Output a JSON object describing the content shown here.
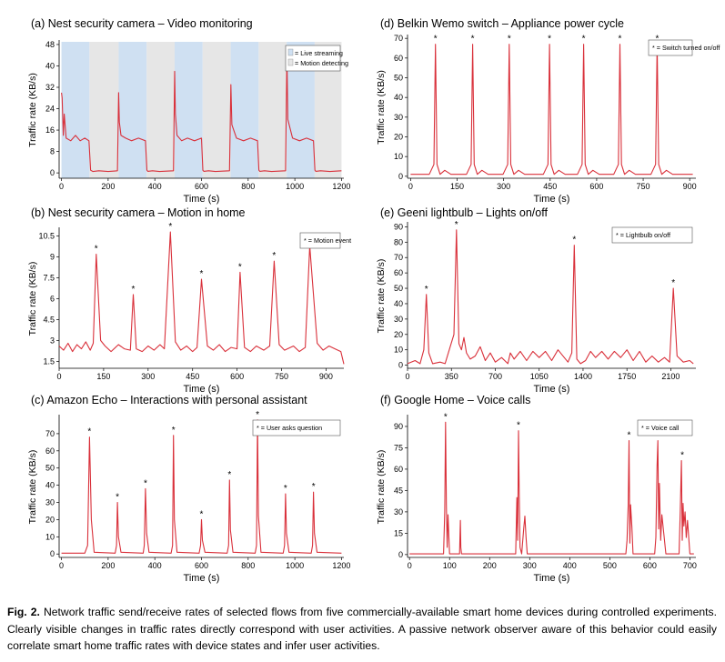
{
  "figure": {
    "caption_label": "Fig. 2.",
    "caption_text": "Network traffic send/receive rates of selected flows from five commercially-available smart home devices during controlled experiments. Clearly visible changes in traffic rates directly correspond with user activities. A passive network observer aware of this behavior could easily correlate smart home traffic rates with device states and infer user activities."
  },
  "colors": {
    "line": "#d9303a",
    "band_blue": "#cfe0f2",
    "band_gray": "#e6e6e6",
    "axis": "#000000"
  },
  "chart_data": [
    {
      "id": "a",
      "type": "line",
      "title": "(a) Nest security camera – Video monitoring",
      "xlabel": "Time (s)",
      "ylabel": "Traffic rate (KB/s)",
      "xlim": [
        -10,
        1210
      ],
      "ylim": [
        -2,
        49
      ],
      "xticks": [
        0,
        200,
        400,
        600,
        800,
        1000,
        1200
      ],
      "yticks": [
        0,
        8,
        16,
        24,
        32,
        40,
        48
      ],
      "legend": {
        "position": "top-right",
        "entries": [
          "= Live streaming",
          "= Motion detecting"
        ]
      },
      "bands": [
        {
          "state": "live_streaming",
          "x0": 0,
          "x1": 120
        },
        {
          "state": "motion_detecting",
          "x0": 120,
          "x1": 245
        },
        {
          "state": "live_streaming",
          "x0": 245,
          "x1": 365
        },
        {
          "state": "motion_detecting",
          "x0": 365,
          "x1": 485
        },
        {
          "state": "live_streaming",
          "x0": 485,
          "x1": 605
        },
        {
          "state": "motion_detecting",
          "x0": 605,
          "x1": 725
        },
        {
          "state": "live_streaming",
          "x0": 725,
          "x1": 845
        },
        {
          "state": "motion_detecting",
          "x0": 845,
          "x1": 965
        },
        {
          "state": "live_streaming",
          "x0": 965,
          "x1": 1085
        },
        {
          "state": "motion_detecting",
          "x0": 1085,
          "x1": 1200
        }
      ],
      "series": [
        {
          "name": "traffic",
          "x": [
            0,
            3,
            8,
            12,
            20,
            40,
            60,
            80,
            100,
            118,
            125,
            135,
            160,
            200,
            240,
            245,
            248,
            255,
            275,
            300,
            330,
            360,
            366,
            370,
            390,
            420,
            480,
            485,
            488,
            495,
            515,
            540,
            570,
            600,
            606,
            610,
            630,
            660,
            720,
            726,
            730,
            750,
            780,
            810,
            840,
            846,
            850,
            870,
            900,
            960,
            966,
            970,
            990,
            1020,
            1050,
            1080,
            1086,
            1090,
            1110,
            1150,
            1200
          ],
          "y": [
            30,
            28,
            14,
            22,
            13,
            12,
            14,
            12,
            13,
            12,
            1,
            0.5,
            0.8,
            0.5,
            0.8,
            30,
            19,
            14,
            13,
            12,
            13,
            12,
            1,
            0.6,
            0.8,
            0.5,
            0.8,
            38,
            22,
            14,
            12,
            13,
            12,
            13,
            1,
            0.6,
            0.8,
            0.5,
            0.8,
            33,
            18,
            13,
            12,
            13,
            12,
            1,
            0.6,
            0.8,
            0.5,
            0.8,
            44,
            20,
            13,
            12,
            13,
            12,
            1,
            0.6,
            0.8,
            0.5,
            0.8
          ]
        }
      ]
    },
    {
      "id": "b",
      "type": "line",
      "title": "(b) Nest security camera – Motion in home",
      "xlabel": "Time (s)",
      "ylabel": "Traffic rate (KB/s)",
      "xlim": [
        0,
        960
      ],
      "ylim": [
        1.0,
        11.0
      ],
      "xticks": [
        0,
        150,
        300,
        450,
        600,
        750,
        900
      ],
      "yticks": [
        1.5,
        3,
        4.5,
        6,
        7.5,
        9,
        10.5
      ],
      "legend": {
        "position": "top-right",
        "entries": [
          "* = Motion event"
        ]
      },
      "marker_label": "*",
      "events": [
        {
          "x": 125,
          "y": 9.2
        },
        {
          "x": 250,
          "y": 6.3
        },
        {
          "x": 375,
          "y": 10.8
        },
        {
          "x": 480,
          "y": 7.4
        },
        {
          "x": 610,
          "y": 7.9
        },
        {
          "x": 725,
          "y": 8.7
        },
        {
          "x": 845,
          "y": 9.8
        }
      ],
      "series": [
        {
          "name": "traffic",
          "x": [
            0,
            15,
            30,
            45,
            60,
            75,
            90,
            105,
            115,
            125,
            140,
            155,
            175,
            200,
            220,
            240,
            250,
            260,
            280,
            300,
            320,
            340,
            355,
            375,
            392,
            410,
            430,
            450,
            465,
            480,
            500,
            520,
            540,
            560,
            580,
            600,
            610,
            625,
            645,
            665,
            690,
            710,
            725,
            742,
            760,
            790,
            810,
            830,
            845,
            870,
            890,
            910,
            930,
            950,
            960
          ],
          "y": [
            2.6,
            2.3,
            2.8,
            2.2,
            2.7,
            2.4,
            2.9,
            2.3,
            2.8,
            9.2,
            3.0,
            2.6,
            2.2,
            2.7,
            2.4,
            2.3,
            6.3,
            2.4,
            2.2,
            2.6,
            2.3,
            2.7,
            2.4,
            10.8,
            2.9,
            2.3,
            2.6,
            2.2,
            2.5,
            7.4,
            2.6,
            2.3,
            2.7,
            2.2,
            2.5,
            2.4,
            7.9,
            2.5,
            2.2,
            2.6,
            2.3,
            2.6,
            8.7,
            2.7,
            2.3,
            2.6,
            2.2,
            2.5,
            9.8,
            2.8,
            2.3,
            2.6,
            2.4,
            2.2,
            1.3
          ]
        }
      ]
    },
    {
      "id": "c",
      "type": "line",
      "title": "(c) Amazon Echo – Interactions with personal assistant",
      "xlabel": "Time (s)",
      "ylabel": "Traffic rate (KB/s)",
      "xlim": [
        -10,
        1210
      ],
      "ylim": [
        -2,
        80
      ],
      "xticks": [
        0,
        200,
        400,
        600,
        800,
        1000,
        1200
      ],
      "yticks": [
        0,
        10,
        20,
        30,
        40,
        50,
        60,
        70
      ],
      "legend": {
        "position": "top-right",
        "entries": [
          "* = User asks question"
        ]
      },
      "marker_label": "*",
      "events": [
        {
          "x": 120,
          "y": 68
        },
        {
          "x": 240,
          "y": 30
        },
        {
          "x": 360,
          "y": 38
        },
        {
          "x": 480,
          "y": 69
        },
        {
          "x": 600,
          "y": 20
        },
        {
          "x": 720,
          "y": 43
        },
        {
          "x": 840,
          "y": 78
        },
        {
          "x": 960,
          "y": 35
        },
        {
          "x": 1080,
          "y": 36
        }
      ],
      "series": [
        {
          "name": "traffic",
          "x": [
            0,
            100,
            112,
            120,
            128,
            140,
            230,
            236,
            240,
            244,
            255,
            350,
            355,
            360,
            365,
            375,
            470,
            476,
            480,
            484,
            495,
            590,
            596,
            600,
            604,
            615,
            710,
            716,
            720,
            724,
            735,
            830,
            836,
            840,
            844,
            855,
            950,
            956,
            960,
            964,
            975,
            1070,
            1076,
            1080,
            1084,
            1095,
            1200
          ],
          "y": [
            0.5,
            0.5,
            5,
            68,
            20,
            1,
            0.5,
            5,
            30,
            10,
            1,
            0.5,
            5,
            38,
            12,
            1,
            0.5,
            5,
            69,
            20,
            1,
            0.5,
            5,
            20,
            8,
            1,
            0.5,
            5,
            43,
            14,
            1,
            0.5,
            5,
            78,
            22,
            1,
            0.5,
            5,
            35,
            12,
            1,
            0.5,
            5,
            36,
            12,
            1,
            0.5
          ]
        }
      ]
    },
    {
      "id": "d",
      "type": "line",
      "title": "(d) Belkin Wemo switch – Appliance power cycle",
      "xlabel": "Time (s)",
      "ylabel": "Traffic rate (KB/s)",
      "xlim": [
        -10,
        920
      ],
      "ylim": [
        -1,
        71
      ],
      "xticks": [
        0,
        150,
        300,
        450,
        600,
        750,
        900
      ],
      "yticks": [
        0,
        10,
        20,
        30,
        40,
        50,
        60,
        70
      ],
      "legend": {
        "position": "top-right",
        "entries": [
          "* = Switch turned on/off"
        ]
      },
      "marker_label": "*",
      "events": [
        {
          "x": 80,
          "y": 67
        },
        {
          "x": 200,
          "y": 67
        },
        {
          "x": 318,
          "y": 67
        },
        {
          "x": 448,
          "y": 67
        },
        {
          "x": 558,
          "y": 67
        },
        {
          "x": 675,
          "y": 67
        },
        {
          "x": 795,
          "y": 67
        }
      ],
      "series": [
        {
          "name": "traffic",
          "x": [
            0,
            60,
            75,
            80,
            85,
            95,
            110,
            130,
            180,
            195,
            200,
            205,
            215,
            230,
            250,
            298,
            313,
            318,
            323,
            333,
            348,
            368,
            428,
            443,
            448,
            453,
            463,
            478,
            498,
            538,
            553,
            558,
            563,
            573,
            588,
            608,
            655,
            670,
            675,
            680,
            690,
            705,
            725,
            775,
            790,
            795,
            800,
            810,
            825,
            845,
            910
          ],
          "y": [
            1,
            1,
            6,
            67,
            6,
            1,
            3,
            1,
            1,
            6,
            67,
            6,
            1,
            3,
            1,
            1,
            6,
            67,
            6,
            1,
            3,
            1,
            1,
            6,
            67,
            6,
            1,
            3,
            1,
            1,
            6,
            67,
            6,
            1,
            3,
            1,
            1,
            6,
            67,
            6,
            1,
            3,
            1,
            1,
            6,
            67,
            6,
            1,
            3,
            1,
            1
          ]
        }
      ]
    },
    {
      "id": "e",
      "type": "line",
      "title": "(e) Geeni lightbulb – Lights on/off",
      "xlabel": "Time (s)",
      "ylabel": "Traffic rate (KB/s)",
      "xlim": [
        0,
        2300
      ],
      "ylim": [
        -2,
        92
      ],
      "xticks": [
        0,
        350,
        700,
        1050,
        1400,
        1750,
        2100
      ],
      "yticks": [
        0,
        10,
        20,
        30,
        40,
        50,
        60,
        70,
        80,
        90
      ],
      "legend": {
        "position": "top-right",
        "entries": [
          "* = Lightbulb on/off"
        ]
      },
      "marker_label": "*",
      "events": [
        {
          "x": 150,
          "y": 46
        },
        {
          "x": 390,
          "y": 88
        },
        {
          "x": 1330,
          "y": 78
        },
        {
          "x": 2120,
          "y": 50
        }
      ],
      "series": [
        {
          "name": "traffic",
          "x": [
            0,
            60,
            100,
            130,
            150,
            170,
            200,
            260,
            300,
            340,
            370,
            390,
            410,
            430,
            450,
            470,
            500,
            540,
            580,
            620,
            660,
            700,
            750,
            800,
            820,
            850,
            900,
            950,
            1000,
            1050,
            1100,
            1150,
            1200,
            1250,
            1280,
            1310,
            1330,
            1350,
            1380,
            1420,
            1460,
            1500,
            1550,
            1600,
            1650,
            1700,
            1750,
            1800,
            1850,
            1900,
            1950,
            2000,
            2050,
            2090,
            2120,
            2150,
            2200,
            2250,
            2280
          ],
          "y": [
            1,
            3,
            1,
            10,
            46,
            8,
            1,
            2,
            1,
            12,
            20,
            88,
            14,
            10,
            18,
            8,
            4,
            6,
            12,
            3,
            8,
            2,
            5,
            1,
            8,
            4,
            9,
            3,
            9,
            5,
            9,
            3,
            10,
            5,
            2,
            8,
            78,
            4,
            1,
            3,
            9,
            5,
            9,
            4,
            9,
            5,
            10,
            3,
            9,
            2,
            6,
            2,
            5,
            2,
            50,
            6,
            2,
            3,
            1
          ]
        }
      ]
    },
    {
      "id": "f",
      "type": "line",
      "title": "(f) Google Home – Voice calls",
      "xlabel": "Time (s)",
      "ylabel": "Traffic rate (KB/s)",
      "xlim": [
        -5,
        715
      ],
      "ylim": [
        -2,
        97
      ],
      "xticks": [
        0,
        100,
        200,
        300,
        400,
        500,
        600,
        700
      ],
      "yticks": [
        0,
        15,
        30,
        45,
        60,
        75,
        90
      ],
      "legend": {
        "position": "top-right",
        "entries": [
          "* = Voice call"
        ]
      },
      "marker_label": "*",
      "events": [
        {
          "x": 90,
          "y": 93
        },
        {
          "x": 272,
          "y": 87
        },
        {
          "x": 548,
          "y": 80
        },
        {
          "x": 620,
          "y": 80
        },
        {
          "x": 681,
          "y": 66
        }
      ],
      "series": [
        {
          "name": "traffic",
          "x": [
            0,
            85,
            88,
            90,
            92,
            94,
            96,
            100,
            125,
            127,
            128,
            130,
            265,
            268,
            270,
            272,
            274,
            276,
            280,
            285,
            288,
            291,
            294,
            540,
            543,
            546,
            548,
            550,
            552,
            555,
            558,
            612,
            615,
            618,
            620,
            622,
            624,
            627,
            630,
            640,
            673,
            676,
            679,
            681,
            683,
            685,
            688,
            691,
            694,
            700,
            710
          ],
          "y": [
            0.5,
            0.5,
            30,
            93,
            35,
            5,
            28,
            0.5,
            0.5,
            24,
            5,
            0.5,
            0.5,
            40,
            10,
            87,
            42,
            5,
            0.5,
            18,
            27,
            12,
            0.5,
            0.5,
            10,
            35,
            80,
            8,
            35,
            20,
            0.5,
            0.5,
            12,
            62,
            80,
            18,
            50,
            10,
            28,
            0.5,
            0.5,
            30,
            66,
            10,
            36,
            20,
            30,
            12,
            24,
            0.5,
            0.5
          ]
        }
      ]
    }
  ]
}
